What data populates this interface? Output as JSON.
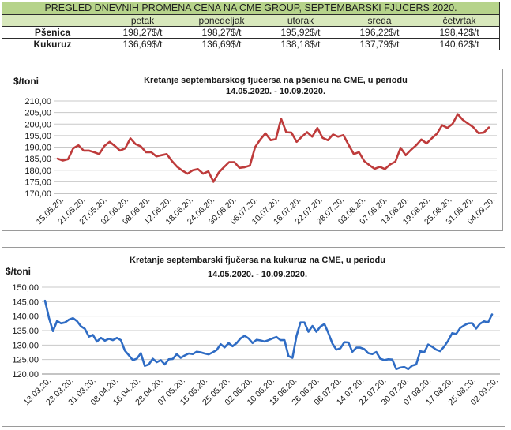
{
  "price_table": {
    "title": "PREGLED DNEVNIH PROMENA CENA NA CME GROUP, SEPTEMBARSKI  FJUCERS 2020.",
    "headers": [
      "",
      "petak",
      "ponedeljak",
      "utorak",
      "sreda",
      "četvrtak"
    ],
    "rows": [
      {
        "label": "Pšenica",
        "values": [
          "198,27$/t",
          "198,27$/t",
          "195,92$/t",
          "196,22$/t",
          "198,42$/t"
        ]
      },
      {
        "label": "Kukuruz",
        "values": [
          "136,69$/t",
          "136,69$/t",
          "138,18$/t",
          "137,79$/t",
          "140,62$/t"
        ]
      }
    ],
    "colors": {
      "title_bg": "#b6d38a",
      "header_bg": "#d8e8bc",
      "border": "#2c2c2c"
    }
  },
  "chart_data": [
    {
      "type": "line",
      "title_lines": [
        "Kretanje septembarskog fjučersa na  pšenicu na CME, u periodu",
        "14.05.2020. - 10.09.2020."
      ],
      "ylabel": "$/toni",
      "ylim": [
        170,
        210
      ],
      "yticks": [
        170,
        175,
        180,
        185,
        190,
        195,
        200,
        205,
        210
      ],
      "ytick_labels": [
        "170,00",
        "175,00",
        "180,00",
        "185,00",
        "190,00",
        "195,00",
        "200,00",
        "205,00",
        "210,00"
      ],
      "x_labels": [
        "15.05.20.",
        "21.05.20.",
        "27.05.20.",
        "02.06.20.",
        "08.06.20.",
        "12.06.20.",
        "18.06.20.",
        "24.06.20.",
        "30.06.20.",
        "06.07.20.",
        "10.07.20.",
        "16.07.20.",
        "22.07.20.",
        "28.07.20.",
        "03.08.20.",
        "07.08.20.",
        "13.08.20.",
        "19.08.20.",
        "25.08.20.",
        "31.08.20.",
        "04.09.20."
      ],
      "grid": true,
      "legend": "none",
      "series": [
        {
          "color": "#be3b3b",
          "values": [
            185,
            184.2,
            184.8,
            189.5,
            190.8,
            188.5,
            188.5,
            187.8,
            187,
            190.5,
            192.3,
            190.5,
            188.5,
            189.5,
            193.8,
            191.3,
            190.3,
            187.8,
            187.8,
            186,
            186.5,
            187,
            184,
            181.5,
            179.8,
            178.5,
            180,
            180.5,
            178.5,
            179.5,
            175,
            179,
            181.3,
            183.5,
            183.5,
            181,
            181.3,
            182,
            190,
            193.3,
            196,
            193,
            193.5,
            202.3,
            196.5,
            196.3,
            192.3,
            194.5,
            196.5,
            194.5,
            198.3,
            194,
            193,
            195.5,
            194.5,
            195.2,
            191,
            187,
            187.8,
            184,
            182.2,
            180.6,
            181.5,
            180.5,
            182.5,
            183.7,
            189.7,
            186.5,
            188.8,
            190.8,
            193.3,
            191.6,
            193.8,
            195.8,
            199.5,
            198.3,
            200.1,
            204.3,
            201.8,
            200.2,
            198.6,
            196.1,
            196.3,
            198.5
          ]
        }
      ]
    },
    {
      "type": "line",
      "title_lines": [
        "Kretanje septembarski fjučersa na  kukuruz na CME, u periodu",
        "14.05.2020. - 10.09.2020."
      ],
      "ylabel": "$/toni",
      "ylim": [
        120,
        150
      ],
      "yticks": [
        120,
        125,
        130,
        135,
        140,
        145,
        150
      ],
      "ytick_labels": [
        "120,00",
        "125,00",
        "130,00",
        "135,00",
        "140,00",
        "145,00",
        "150,00"
      ],
      "x_labels": [
        "13.03.20.",
        "23.03.20.",
        "31.03.20.",
        "08.04.20.",
        "16.04.20.",
        "28.04.20.",
        "07.05.20.",
        "15.05.20.",
        "25.05.20.",
        "02.06.20.",
        "10.06.20.",
        "18.06.20.",
        "26.06.20.",
        "06.07.20.",
        "14.07.20.",
        "22.07.20.",
        "30.07.20.",
        "07.08.20.",
        "17.08.20.",
        "25.08.20.",
        "02.09.20."
      ],
      "grid": true,
      "legend": "none",
      "series": [
        {
          "color": "#2f6cc4",
          "values": [
            145.3,
            139.3,
            134.8,
            138.3,
            137.5,
            137.8,
            138.8,
            139.3,
            138.3,
            136.5,
            135.6,
            132.9,
            133.5,
            131.2,
            132.5,
            131.5,
            132.2,
            131.7,
            132.5,
            131.7,
            128.1,
            126.5,
            124.8,
            125.3,
            127.2,
            122.8,
            123.3,
            125.3,
            124.1,
            124.8,
            123.3,
            125.1,
            125.2,
            126.9,
            125.6,
            126.4,
            127.1,
            126.9,
            127.7,
            127.5,
            127.1,
            126.8,
            127.5,
            128.3,
            130.3,
            129.2,
            130.7,
            129.6,
            130.7,
            132.3,
            133.2,
            132.3,
            130.7,
            131.8,
            131.6,
            131.2,
            131.7,
            132.3,
            132.8,
            131.7,
            131.7,
            126.2,
            125.6,
            133.1,
            137.8,
            137.8,
            134.6,
            136.6,
            134.6,
            136.4,
            137.3,
            134.1,
            130.5,
            128.4,
            128.9,
            131,
            130.9,
            127.7,
            129.1,
            129.1,
            128.6,
            127.2,
            126.9,
            127.6,
            125.3,
            124.8,
            125.1,
            125,
            121.7,
            122.2,
            122.4,
            121.7,
            122.9,
            123.3,
            127.9,
            127.5,
            130.2,
            129.4,
            128.4,
            127.9,
            129.5,
            131.5,
            134.1,
            133.8,
            135.9,
            136.8,
            137.5,
            137.6,
            135.7,
            137.4,
            138.2,
            137.8,
            140.6
          ]
        }
      ]
    }
  ]
}
